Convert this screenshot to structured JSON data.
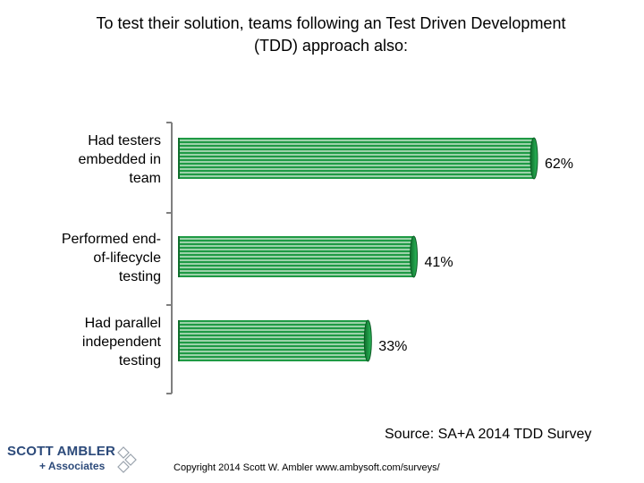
{
  "title_lines": [
    "To test their solution, teams following an Test Driven Development",
    "(TDD) approach also:"
  ],
  "chart_data": {
    "type": "bar",
    "orientation": "horizontal",
    "title": "To test their solution, teams following an Test Driven Development (TDD) approach also:",
    "categories": [
      [
        "Had testers",
        "embedded in",
        "team"
      ],
      [
        "Performed end-",
        "of-lifecycle",
        "testing"
      ],
      [
        "Had parallel",
        "independent",
        "testing"
      ]
    ],
    "values": [
      62,
      41,
      33
    ],
    "value_labels": [
      "62%",
      "41%",
      "33%"
    ],
    "xlim": [
      0,
      100
    ],
    "bar_color": "#1f9a45",
    "stripe_color": "#e6f4e8"
  },
  "source": "Source: SA+A 2014 TDD Survey",
  "copyright": "Copyright 2014 Scott W. Ambler www.ambysoft.com/surveys/",
  "logo": {
    "line1": "SCOTT AMBLER",
    "line2": "+ Associates",
    "color": "#2c4a7a"
  }
}
